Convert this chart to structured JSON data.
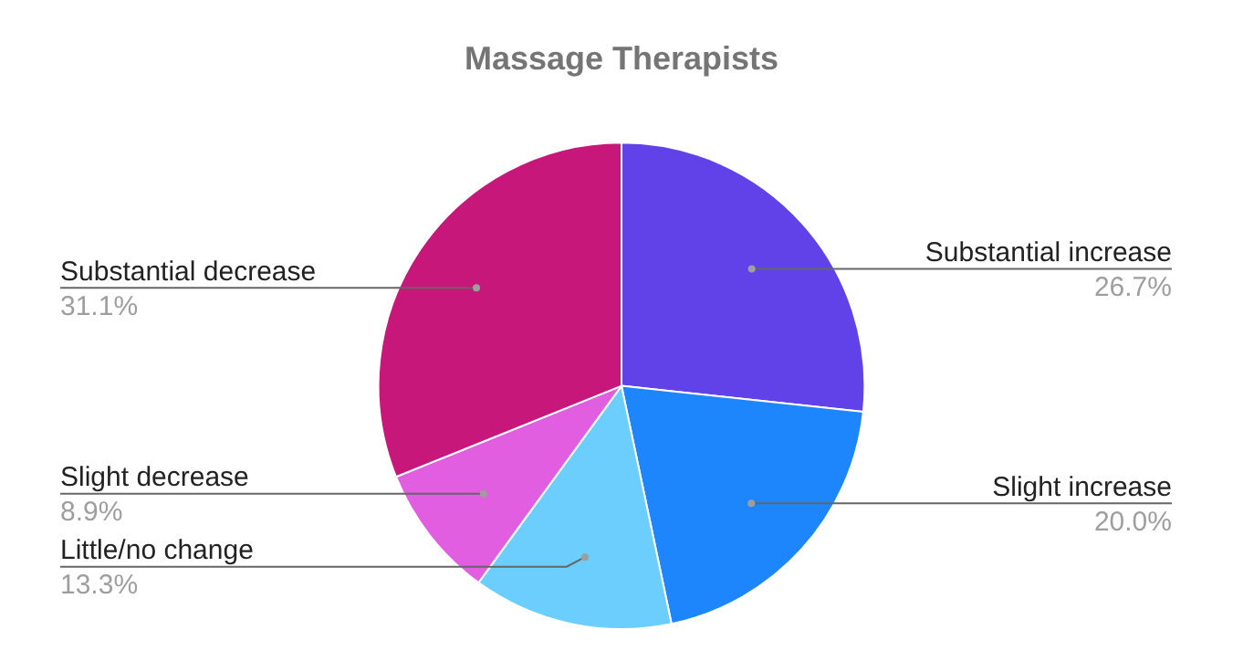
{
  "chart_data": {
    "type": "pie",
    "title": "Massage Therapists",
    "categories": [
      "Substantial increase",
      "Slight increase",
      "Little/no change",
      "Slight decrease",
      "Substantial decrease"
    ],
    "values": [
      26.7,
      20.0,
      13.3,
      8.9,
      31.1
    ],
    "value_labels": [
      "26.7%",
      "20.0%",
      "13.3%",
      "8.9%",
      "31.1%"
    ],
    "colors": [
      "#6142e8",
      "#1e86fd",
      "#6ccefc",
      "#e05edf",
      "#c8177a"
    ],
    "legend": false
  }
}
